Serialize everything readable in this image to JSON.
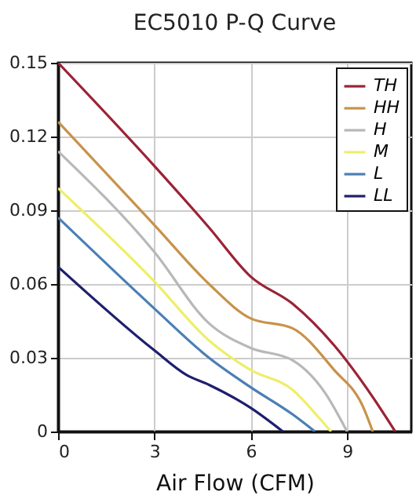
{
  "chart_data": {
    "type": "line",
    "title": "EC5010 P-Q Curve",
    "xlabel": "Air Flow (CFM)",
    "xlim": [
      0,
      11
    ],
    "xticks": [
      0,
      3,
      6,
      9
    ],
    "ylim": [
      0,
      0.15
    ],
    "yticks": [
      0,
      0.03,
      0.06,
      0.09,
      0.12,
      0.15
    ],
    "grid": true,
    "legend": "top right",
    "marker": "none",
    "line_style": "solid",
    "series": [
      {
        "name": "TH",
        "color": "#9b2335",
        "x": [
          0,
          3,
          4.7,
          6,
          7.3,
          8.6,
          9.8,
          10.5
        ],
        "values": [
          0.15,
          0.108,
          0.083,
          0.063,
          0.052,
          0.035,
          0.014,
          0
        ]
      },
      {
        "name": "HH",
        "color": "#c8924a",
        "x": [
          0,
          3,
          4.7,
          6,
          7.3,
          8.6,
          9.5,
          9.8
        ],
        "values": [
          0.126,
          0.084,
          0.06,
          0.046,
          0.042,
          0.025,
          0.01,
          0
        ]
      },
      {
        "name": "H",
        "color": "#b8b8b8",
        "x": [
          0,
          3,
          4.7,
          6,
          7.3,
          8.3,
          9
        ],
        "values": [
          0.114,
          0.073,
          0.044,
          0.034,
          0.029,
          0.016,
          0
        ]
      },
      {
        "name": "M",
        "color": "#eeee6a",
        "x": [
          0,
          3,
          4.7,
          6,
          7.3,
          8.1,
          8.5
        ],
        "values": [
          0.099,
          0.061,
          0.037,
          0.025,
          0.017,
          0.006,
          0
        ]
      },
      {
        "name": "L",
        "color": "#4a7fb5",
        "x": [
          0,
          3,
          4.7,
          6,
          7.3,
          8
        ],
        "values": [
          0.087,
          0.05,
          0.03,
          0.018,
          0.007,
          0
        ]
      },
      {
        "name": "LL",
        "color": "#1f1f6e",
        "x": [
          0,
          3,
          4,
          4.7,
          6,
          7
        ],
        "values": [
          0.067,
          0.033,
          0.023,
          0.019,
          0.0096,
          0
        ]
      }
    ]
  }
}
